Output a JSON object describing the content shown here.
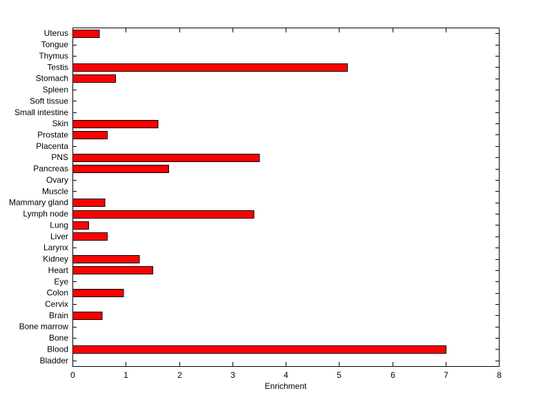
{
  "chart_data": {
    "type": "bar",
    "orientation": "horizontal",
    "title": "",
    "xlabel": "Enrichment",
    "ylabel": "",
    "xlim": [
      0,
      8
    ],
    "xticks": [
      0,
      1,
      2,
      3,
      4,
      5,
      6,
      7,
      8
    ],
    "grid": false,
    "legend": "none",
    "bar_color": "#ff0000",
    "bar_edge_color": "#000000",
    "axis_color": "#000000",
    "background": "#ffffff",
    "categories": [
      "Uterus",
      "Tongue",
      "Thymus",
      "Testis",
      "Stomach",
      "Spleen",
      "Soft tissue",
      "Small intestine",
      "Skin",
      "Prostate",
      "Placenta",
      "PNS",
      "Pancreas",
      "Ovary",
      "Muscle",
      "Mammary gland",
      "Lymph node",
      "Lung",
      "Liver",
      "Larynx",
      "Kidney",
      "Heart",
      "Eye",
      "Colon",
      "Cervix",
      "Brain",
      "Bone marrow",
      "Bone",
      "Blood",
      "Bladder"
    ],
    "values": [
      0.5,
      0,
      0,
      5.15,
      0.8,
      0,
      0,
      0,
      1.6,
      0.65,
      0,
      3.5,
      1.8,
      0,
      0,
      0.6,
      3.4,
      0.3,
      0.65,
      0,
      1.25,
      1.5,
      0,
      0.95,
      0,
      0.55,
      0,
      0,
      7.0,
      0
    ]
  }
}
